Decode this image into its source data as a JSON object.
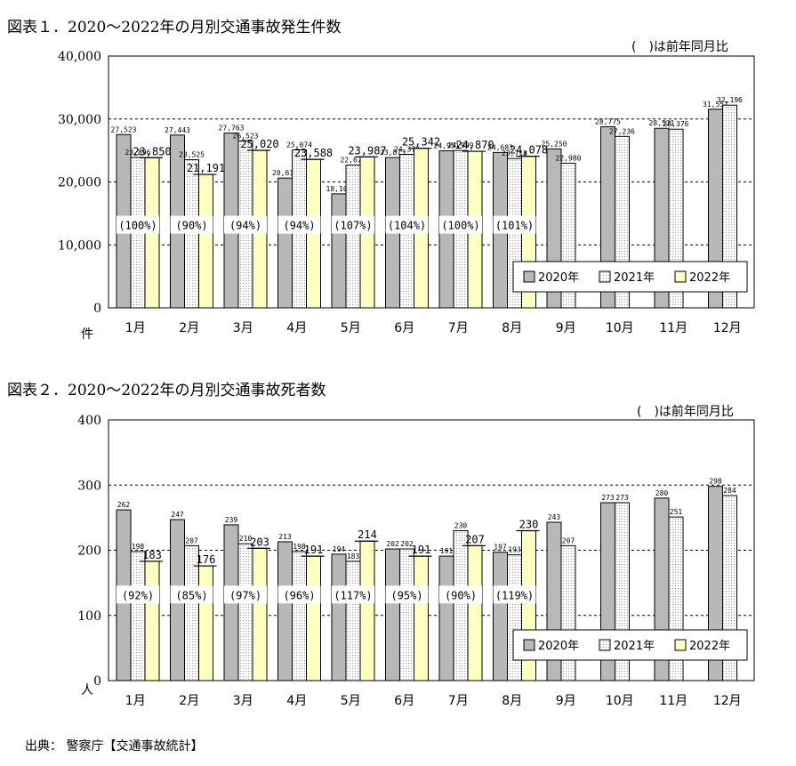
{
  "source": "出典： 警察庁【交通事故統計】",
  "colors": {
    "y2020": "#b8b8b8",
    "y2021": "#ffffff",
    "y2022": "#ffffc0"
  },
  "chart_data": [
    {
      "type": "bar",
      "title": "図表１．2020～2022年の月別交通事故発生件数",
      "note": "(　)は前年同月比",
      "unit_label": "件",
      "categories": [
        "1月",
        "2月",
        "3月",
        "4月",
        "5月",
        "6月",
        "7月",
        "8月",
        "9月",
        "10月",
        "11月",
        "12月"
      ],
      "ylim": [
        0,
        40000
      ],
      "yticks": [
        0,
        10000,
        20000,
        30000,
        40000
      ],
      "ytick_labels": [
        "0",
        "10,000",
        "20,000",
        "30,000",
        "40,000"
      ],
      "grid": true,
      "legend_position": "bottom-right",
      "series": [
        {
          "name": "2020年",
          "values": [
            27523,
            27443,
            27763,
            20615,
            18107,
            23873,
            24951,
            24683,
            25250,
            28775,
            28521,
            31551
          ],
          "labels": [
            "27,523",
            "27,443",
            "27,763",
            "20,615",
            "18,107",
            "23,873",
            "24,951",
            "24,683",
            "25,250",
            "28,775",
            "28,521",
            "31,551"
          ]
        },
        {
          "name": "2021年",
          "values": [
            23896,
            23525,
            26523,
            25074,
            22673,
            24379,
            24999,
            23718,
            22980,
            27236,
            28376,
            32196
          ],
          "labels": [
            "23,896",
            "23,525",
            "26,523",
            "25,074",
            "22,673",
            "24,379",
            "24,999",
            "23,718",
            "22,980",
            "27,236",
            "28,376",
            "32,196"
          ]
        },
        {
          "name": "2022年",
          "values": [
            23850,
            21191,
            25020,
            23588,
            23987,
            25342,
            24870,
            24078,
            null,
            null,
            null,
            null
          ],
          "labels": [
            "23,850",
            "21,191",
            "25,020",
            "23,588",
            "23,987",
            "25,342",
            "24,870",
            "24,078",
            "",
            "",
            "",
            ""
          ]
        }
      ],
      "ratios": [
        "(100%)",
        "(90%)",
        "(94%)",
        "(94%)",
        "(107%)",
        "(104%)",
        "(100%)",
        "(101%)",
        "",
        "",
        "",
        ""
      ]
    },
    {
      "type": "bar",
      "title": "図表２．2020～2022年の月別交通事故死者数",
      "note": "(　)は前年同月比",
      "unit_label": "人",
      "categories": [
        "1月",
        "2月",
        "3月",
        "4月",
        "5月",
        "6月",
        "7月",
        "8月",
        "9月",
        "10月",
        "11月",
        "12月"
      ],
      "ylim": [
        0,
        400
      ],
      "yticks": [
        0,
        100,
        200,
        300,
        400
      ],
      "ytick_labels": [
        "0",
        "100",
        "200",
        "300",
        "400"
      ],
      "grid": true,
      "legend_position": "bottom-right",
      "series": [
        {
          "name": "2020年",
          "values": [
            262,
            247,
            239,
            213,
            194,
            202,
            191,
            197,
            243,
            273,
            280,
            298
          ],
          "labels": [
            "262",
            "247",
            "239",
            "213",
            "194",
            "202",
            "191",
            "197",
            "243",
            "273",
            "280",
            "298"
          ]
        },
        {
          "name": "2021年",
          "values": [
            198,
            207,
            210,
            198,
            183,
            202,
            230,
            193,
            207,
            273,
            251,
            284
          ],
          "labels": [
            "198",
            "207",
            "210",
            "198",
            "183",
            "202",
            "230",
            "193",
            "207",
            "273",
            "251",
            "284"
          ]
        },
        {
          "name": "2022年",
          "values": [
            183,
            176,
            203,
            191,
            214,
            191,
            207,
            230,
            null,
            null,
            null,
            null
          ],
          "labels": [
            "183",
            "176",
            "203",
            "191",
            "214",
            "191",
            "207",
            "230",
            "",
            "",
            "",
            ""
          ]
        }
      ],
      "ratios": [
        "(92%)",
        "(85%)",
        "(97%)",
        "(96%)",
        "(117%)",
        "(95%)",
        "(90%)",
        "(119%)",
        "",
        "",
        "",
        ""
      ]
    }
  ]
}
